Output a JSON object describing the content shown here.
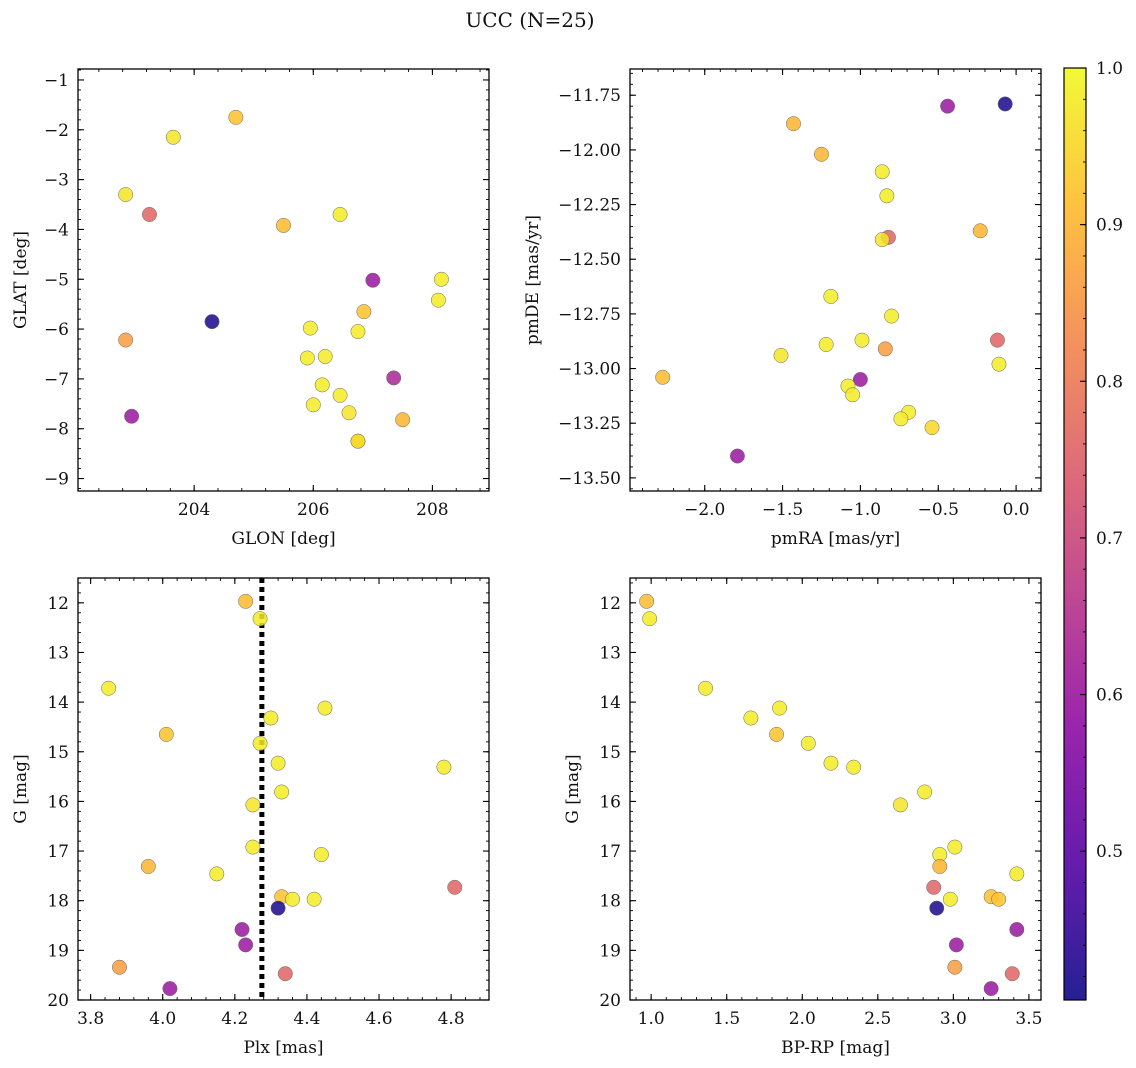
{
  "figure": {
    "title": "UCC (N=25)"
  },
  "colorbar": {
    "min": 0.405,
    "max": 1.0,
    "ticks": [
      "1.0",
      "0.9",
      "0.8",
      "0.7",
      "0.6",
      "0.5"
    ],
    "tick_values": [
      1.0,
      0.9,
      0.8,
      0.7,
      0.6,
      0.5
    ],
    "colormap": "plasma",
    "stops": [
      "#0d0887",
      "#5302a3",
      "#8b0aa5",
      "#b83289",
      "#db5c68",
      "#f48849",
      "#febd2a",
      "#f0f921"
    ]
  },
  "chart_data": [
    {
      "type": "scatter",
      "xlabel": "GLON [deg]",
      "ylabel": "GLAT [deg]",
      "xlim": [
        202.05,
        208.95
      ],
      "ylim": [
        -9.25,
        -0.78
      ],
      "y_inverted": false,
      "xticks": [
        204,
        206,
        208
      ],
      "xticklabels": [
        "204",
        "206",
        "208"
      ],
      "yticks": [
        -1,
        -2,
        -3,
        -4,
        -5,
        -6,
        -7,
        -8,
        -9
      ],
      "yticklabels": [
        "−1",
        "−2",
        "−3",
        "−4",
        "−5",
        "−6",
        "−7",
        "−8",
        "−9"
      ],
      "x_minor_step": 0.4,
      "y_minor_step": 0.2,
      "x": [
        204.7,
        203.65,
        202.85,
        203.25,
        205.5,
        206.45,
        208.15,
        207.0,
        208.1,
        206.85,
        204.3,
        202.85,
        205.95,
        206.75,
        205.9,
        206.2,
        206.15,
        202.95,
        206.45,
        207.35,
        206.0,
        206.6,
        207.5,
        206.75,
        206.75
      ],
      "y": [
        -1.75,
        -2.15,
        -3.3,
        -3.7,
        -3.92,
        -3.7,
        -5.0,
        -5.02,
        -5.42,
        -5.65,
        -5.85,
        -6.22,
        -5.98,
        -6.05,
        -6.58,
        -6.55,
        -7.12,
        -7.75,
        -7.33,
        -6.98,
        -7.52,
        -7.68,
        -7.82,
        -8.25,
        -8.25
      ],
      "c": [
        0.92,
        0.97,
        0.97,
        0.76,
        0.91,
        0.98,
        0.98,
        0.6,
        0.98,
        0.92,
        0.42,
        0.86,
        0.98,
        0.98,
        0.98,
        0.98,
        0.98,
        0.6,
        0.98,
        0.63,
        0.98,
        0.97,
        0.9,
        0.98,
        0.95
      ]
    },
    {
      "type": "scatter",
      "xlabel": "pmRA [mas/yr]",
      "ylabel": "pmDE [mas/yr]",
      "xlim": [
        -2.48,
        0.16
      ],
      "ylim": [
        -13.56,
        -11.63
      ],
      "y_inverted": false,
      "xticks": [
        -2.0,
        -1.5,
        -1.0,
        -0.5,
        0.0
      ],
      "xticklabels": [
        "−2.0",
        "−1.5",
        "−1.0",
        "−0.5",
        "0.0"
      ],
      "yticks": [
        -11.75,
        -12.0,
        -12.25,
        -12.5,
        -12.75,
        -13.0,
        -13.25,
        -13.5
      ],
      "yticklabels": [
        "−11.75",
        "−12.00",
        "−12.25",
        "−12.50",
        "−12.75",
        "−13.00",
        "−13.25",
        "−13.50"
      ],
      "x_minor_step": 0.1,
      "y_minor_step": 0.05,
      "x": [
        -0.44,
        -0.07,
        -1.43,
        -1.25,
        -0.86,
        -0.83,
        -0.23,
        -0.82,
        -0.86,
        -1.19,
        -0.8,
        -1.22,
        -0.99,
        -0.84,
        -1.51,
        -0.12,
        -0.11,
        -2.27,
        -1.0,
        -1.08,
        -1.05,
        -0.69,
        -0.74,
        -0.54,
        -1.79
      ],
      "y": [
        -11.8,
        -11.79,
        -11.88,
        -12.02,
        -12.1,
        -12.21,
        -12.37,
        -12.4,
        -12.41,
        -12.67,
        -12.76,
        -12.89,
        -12.87,
        -12.91,
        -12.94,
        -12.87,
        -12.98,
        -13.04,
        -13.05,
        -13.08,
        -13.12,
        -13.2,
        -13.23,
        -13.27,
        -13.4
      ],
      "c": [
        0.6,
        0.42,
        0.9,
        0.9,
        0.98,
        0.98,
        0.9,
        0.76,
        0.97,
        0.98,
        0.98,
        0.98,
        0.98,
        0.86,
        0.97,
        0.76,
        0.98,
        0.91,
        0.6,
        0.98,
        0.98,
        0.98,
        0.98,
        0.95,
        0.6
      ]
    },
    {
      "type": "scatter",
      "xlabel": "Plx [mas]",
      "ylabel": "G [mag]",
      "xlim": [
        3.765,
        4.905
      ],
      "ylim": [
        20.0,
        11.5
      ],
      "y_inverted": true,
      "xticks": [
        3.8,
        4.0,
        4.2,
        4.4,
        4.6,
        4.8
      ],
      "xticklabels": [
        "3.8",
        "4.0",
        "4.2",
        "4.4",
        "4.6",
        "4.8"
      ],
      "yticks": [
        12,
        13,
        14,
        15,
        16,
        17,
        18,
        19,
        20
      ],
      "yticklabels": [
        "12",
        "13",
        "14",
        "15",
        "16",
        "17",
        "18",
        "19",
        "20"
      ],
      "x_minor_step": 0.04,
      "y_minor_step": 0.2,
      "vline": 4.275,
      "x": [
        4.23,
        4.27,
        3.85,
        4.3,
        4.45,
        4.01,
        4.27,
        4.32,
        4.78,
        4.33,
        4.25,
        4.25,
        4.44,
        3.96,
        4.15,
        4.81,
        4.33,
        4.36,
        4.42,
        4.32,
        4.22,
        4.23,
        3.88,
        4.34,
        4.02
      ],
      "y": [
        11.97,
        12.32,
        13.72,
        14.32,
        14.12,
        14.65,
        14.83,
        15.23,
        15.31,
        15.81,
        16.07,
        16.92,
        17.07,
        17.31,
        17.46,
        17.73,
        17.92,
        17.97,
        17.97,
        18.15,
        18.58,
        18.89,
        19.34,
        19.47,
        19.77
      ],
      "c": [
        0.91,
        0.98,
        0.98,
        0.98,
        0.98,
        0.92,
        0.98,
        0.98,
        0.98,
        0.98,
        0.97,
        0.98,
        0.98,
        0.9,
        0.98,
        0.76,
        0.92,
        0.98,
        0.98,
        0.42,
        0.6,
        0.6,
        0.86,
        0.76,
        0.6
      ]
    },
    {
      "type": "scatter",
      "xlabel": "BP-RP [mag]",
      "ylabel": "G [mag]",
      "xlim": [
        0.86,
        3.58
      ],
      "ylim": [
        20.0,
        11.5
      ],
      "y_inverted": true,
      "xticks": [
        1.0,
        1.5,
        2.0,
        2.5,
        3.0,
        3.5
      ],
      "xticklabels": [
        "1.0",
        "1.5",
        "2.0",
        "2.5",
        "3.0",
        "3.5"
      ],
      "yticks": [
        12,
        13,
        14,
        15,
        16,
        17,
        18,
        19,
        20
      ],
      "yticklabels": [
        "12",
        "13",
        "14",
        "15",
        "16",
        "17",
        "18",
        "19",
        "20"
      ],
      "x_minor_step": 0.1,
      "y_minor_step": 0.2,
      "x": [
        0.97,
        0.99,
        1.36,
        1.66,
        1.85,
        1.83,
        2.04,
        2.19,
        2.34,
        2.65,
        2.81,
        3.01,
        2.91,
        2.91,
        3.42,
        2.87,
        3.25,
        3.3,
        2.98,
        2.89,
        3.42,
        3.02,
        3.01,
        3.39,
        3.25
      ],
      "y": [
        11.97,
        12.32,
        13.72,
        14.32,
        14.12,
        14.65,
        14.83,
        15.23,
        15.31,
        16.07,
        15.81,
        16.92,
        17.07,
        17.31,
        17.46,
        17.73,
        17.92,
        17.97,
        17.97,
        18.15,
        18.58,
        18.89,
        19.34,
        19.47,
        19.77
      ],
      "c": [
        0.91,
        0.98,
        0.98,
        0.98,
        0.98,
        0.92,
        0.98,
        0.98,
        0.98,
        0.97,
        0.98,
        0.98,
        0.98,
        0.9,
        0.98,
        0.76,
        0.92,
        0.92,
        0.98,
        0.42,
        0.6,
        0.6,
        0.86,
        0.76,
        0.6
      ]
    }
  ]
}
